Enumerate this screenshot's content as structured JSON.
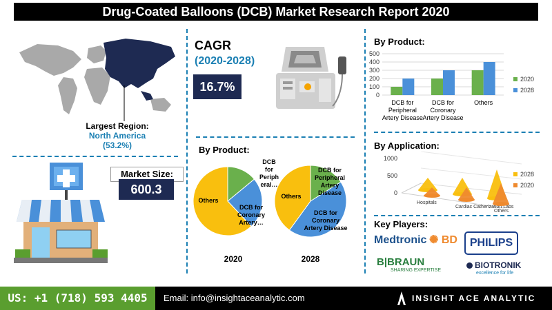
{
  "title": "Drug-Coated Balloons (DCB) Market Research Report 2020",
  "region": {
    "label": "Largest Region:",
    "name": "North America",
    "share": "(53.2%)"
  },
  "market_size": {
    "label": "Market Size:",
    "value": "600.3"
  },
  "cagr": {
    "label": "CAGR",
    "period": "(2020-2028)",
    "value": "16.7%"
  },
  "pies_title": "By Product:",
  "pies": [
    {
      "year": "2020",
      "slices": [
        {
          "label": "Others",
          "value": 62,
          "color": "#f9bf0e"
        },
        {
          "label": "DCB for Peripheral Artery Disease",
          "short": [
            "DCB",
            "for",
            "Periph",
            "eral…"
          ],
          "value": 14,
          "color": "#6ab04c"
        },
        {
          "label": "DCB for Coronary Artery Disease",
          "short": [
            "DCB for",
            "Coronary",
            "Artery…"
          ],
          "value": 24,
          "color": "#4a90d9"
        }
      ]
    },
    {
      "year": "2028",
      "slices": [
        {
          "label": "Others",
          "value": 40,
          "color": "#f9bf0e"
        },
        {
          "label": "DCB for Peripheral Artery Disease",
          "short": [
            "DCB for",
            "Peripheral",
            "Artery",
            "Disease"
          ],
          "value": 16,
          "color": "#6ab04c"
        },
        {
          "label": "DCB for Coronary Artery Disease",
          "short": [
            "DCB for",
            "Coronary",
            "Artery Disease"
          ],
          "value": 44,
          "color": "#4a90d9"
        }
      ]
    }
  ],
  "by_product": {
    "title": "By Product:",
    "chart_data": {
      "type": "bar",
      "categories": [
        [
          "DCB for",
          "Peripheral",
          "Artery Disease"
        ],
        [
          "DCB for",
          "Coronary",
          "Artery Disease"
        ],
        [
          "Others"
        ]
      ],
      "series": [
        {
          "name": "2020",
          "values": [
            100,
            200,
            300
          ],
          "color": "#6ab04c"
        },
        {
          "name": "2028",
          "values": [
            200,
            300,
            400
          ],
          "color": "#4a90d9"
        }
      ],
      "ylim": [
        0,
        500
      ],
      "yticks": [
        "0",
        "100",
        "200",
        "300",
        "400",
        "500"
      ],
      "grid": true,
      "legend": "right"
    }
  },
  "by_application": {
    "title": "By Application:",
    "chart_data": {
      "type": "bar",
      "style": "3d-cone",
      "categories": [
        "Hospitals",
        "Cardiac Catherization Labs",
        "Others"
      ],
      "series": [
        {
          "name": "2028",
          "values": [
            150,
            200,
            350
          ],
          "color": "#f9bf0e"
        },
        {
          "name": "2020",
          "values": [
            100,
            150,
            250
          ],
          "color": "#ef8a2e"
        }
      ],
      "ylim": [
        0,
        1000
      ],
      "yticks": [
        "0",
        "500",
        "1000"
      ],
      "legend": "right"
    }
  },
  "key_players": {
    "title": "Key Players:",
    "logos": [
      "Medtronic",
      "BD",
      "PHILIPS",
      "B|BRAUN",
      "SHARING EXPERTISE",
      "BIOTRONIK",
      "excellence for life"
    ]
  },
  "footer": {
    "phone": "US: +1 (718) 593 4405",
    "email": "Email: info@insightaceanalytic.com",
    "brand": "INSIGHT ACE ANALYTIC"
  }
}
